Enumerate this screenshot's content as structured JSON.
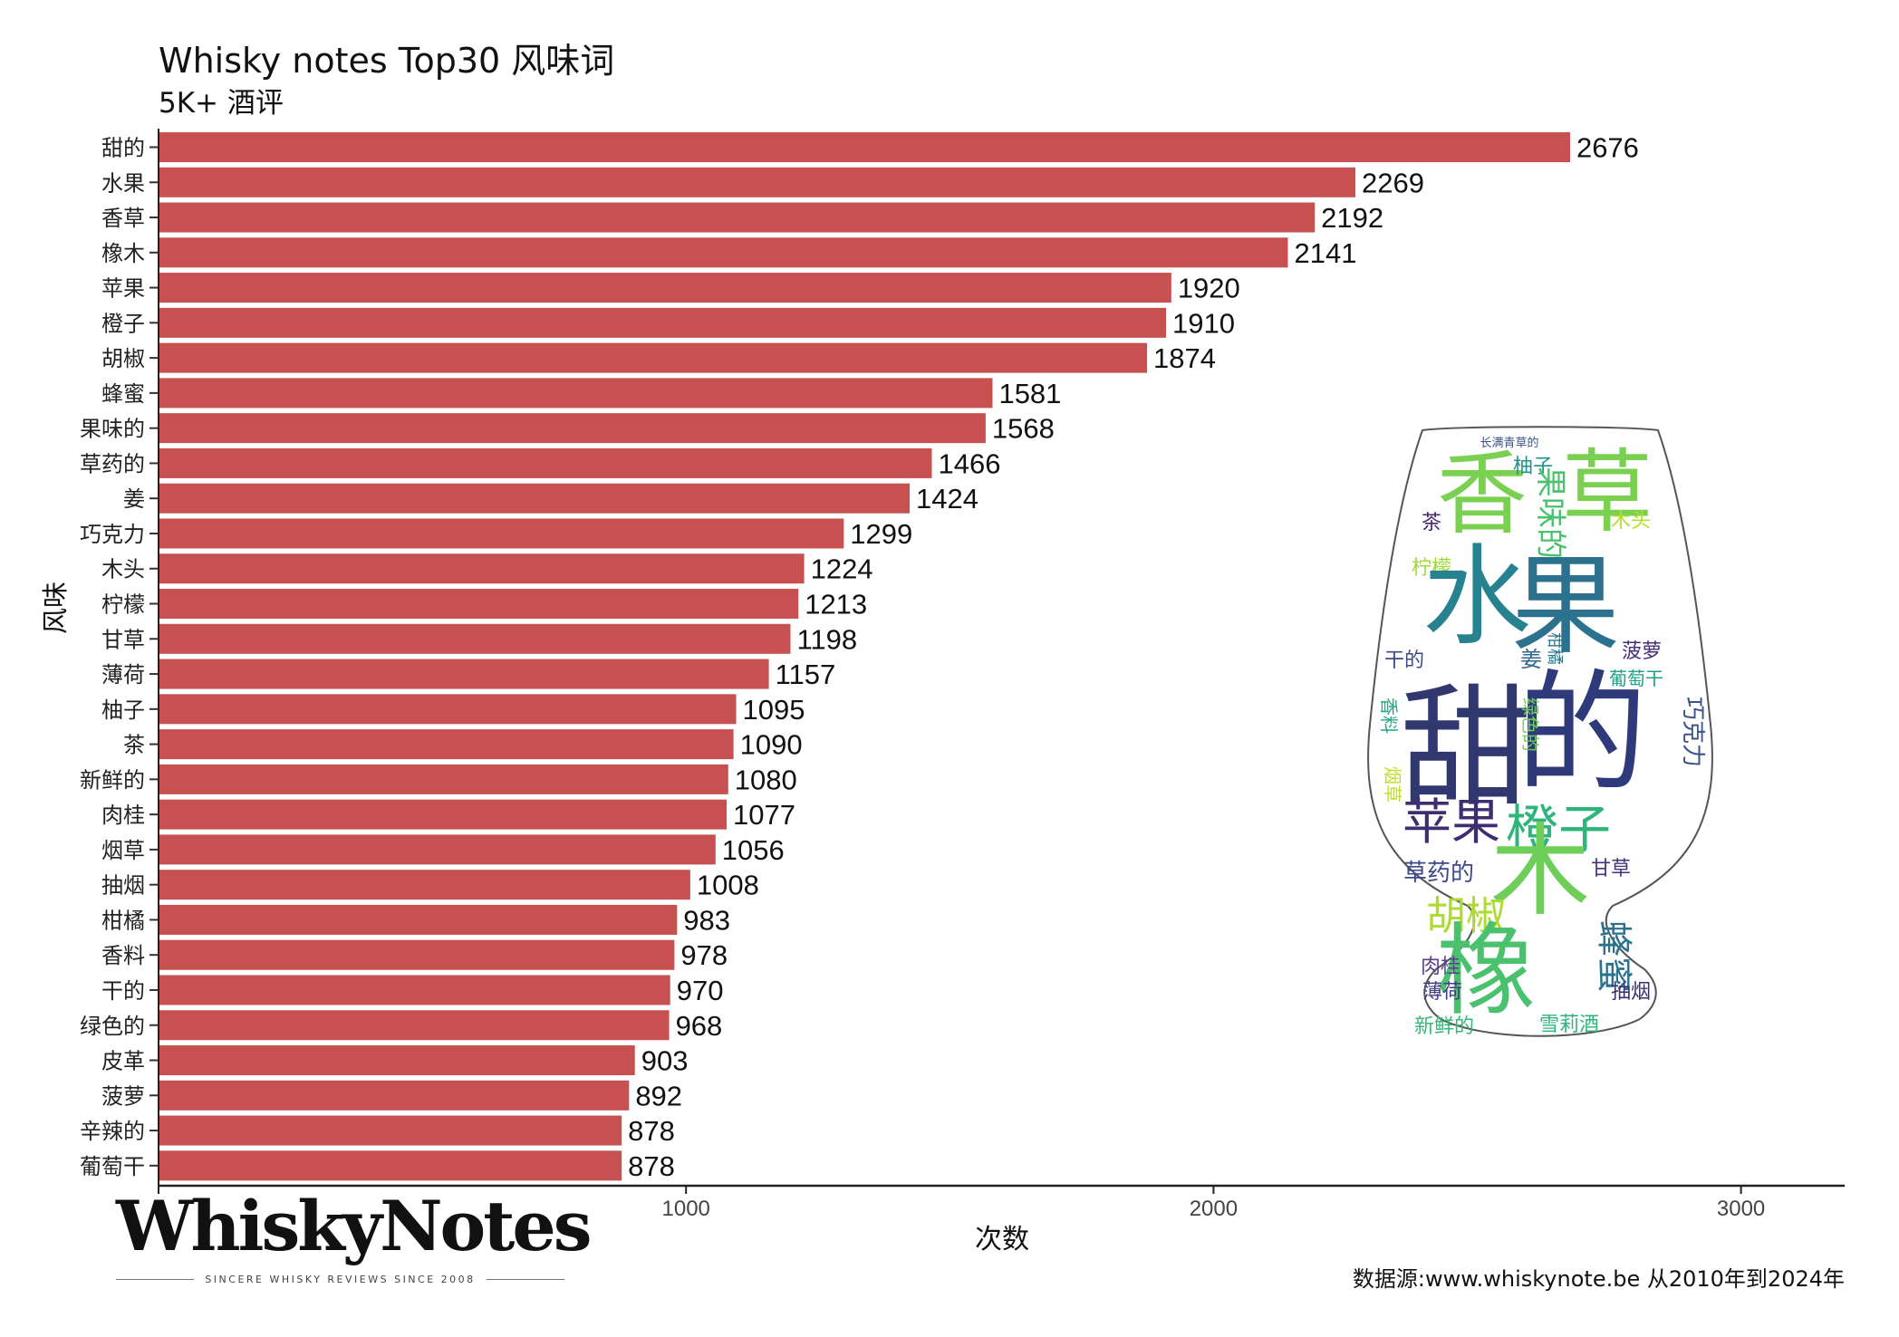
{
  "chart_data": {
    "type": "bar",
    "orientation": "horizontal",
    "title": "Whisky notes Top30 风味词",
    "subtitle": "5K+ 酒评",
    "xlabel": "次数",
    "ylabel": "风味",
    "xlim": [
      0,
      3200
    ],
    "xticks": [
      0,
      1000,
      2000,
      3000
    ],
    "grid": false,
    "bar_color": "#c75151",
    "categories": [
      "甜的",
      "水果",
      "香草",
      "橡木",
      "苹果",
      "橙子",
      "胡椒",
      "蜂蜜",
      "果味的",
      "草药的",
      "姜",
      "巧克力",
      "木头",
      "柠檬",
      "甘草",
      "薄荷",
      "柚子",
      "茶",
      "新鲜的",
      "肉桂",
      "烟草",
      "抽烟",
      "柑橘",
      "香料",
      "干的",
      "绿色的",
      "皮革",
      "菠萝",
      "辛辣的",
      "葡萄干"
    ],
    "values": [
      2676,
      2269,
      2192,
      2141,
      1920,
      1910,
      1874,
      1581,
      1568,
      1466,
      1424,
      1299,
      1224,
      1213,
      1198,
      1157,
      1095,
      1090,
      1080,
      1077,
      1056,
      1008,
      983,
      978,
      970,
      968,
      903,
      892,
      878,
      878
    ],
    "source": "数据源:www.whiskynote.be 从2010年到2024年"
  },
  "logo": {
    "wordmark": "WhiskyNotes",
    "tagline": "SINCERE WHISKY REVIEWS SINCE 2008"
  },
  "wordcloud": {
    "words": [
      {
        "text": "长满青草的",
        "color": "#3b528b"
      },
      {
        "text": "香",
        "color": "#7ad151"
      },
      {
        "text": "草",
        "color": "#7ad151"
      },
      {
        "text": "柚子",
        "color": "#21918c"
      },
      {
        "text": "茶",
        "color": "#482878"
      },
      {
        "text": "木头",
        "color": "#b5de2b"
      },
      {
        "text": "柠檬",
        "color": "#a0da39"
      },
      {
        "text": "水",
        "color": "#26828e"
      },
      {
        "text": "果",
        "color": "#2c728e"
      },
      {
        "text": "果味的",
        "color": "#4ac16d"
      },
      {
        "text": "干的",
        "color": "#3e4989"
      },
      {
        "text": "姜",
        "color": "#31688e"
      },
      {
        "text": "柑橘",
        "color": "#2a788e"
      },
      {
        "text": "菠萝",
        "color": "#472d7b"
      },
      {
        "text": "葡萄干",
        "color": "#1fa187"
      },
      {
        "text": "甜",
        "color": "#31376f"
      },
      {
        "text": "的",
        "color": "#2e3a7a"
      },
      {
        "text": "香料",
        "color": "#22a884"
      },
      {
        "text": "绿色的",
        "color": "#6ece58"
      },
      {
        "text": "巧克力",
        "color": "#3b528b"
      },
      {
        "text": "烟草",
        "color": "#bddf26"
      },
      {
        "text": "苹果",
        "color": "#3e2d70"
      },
      {
        "text": "橙子",
        "color": "#2fb47c"
      },
      {
        "text": "木",
        "color": "#6ece58"
      },
      {
        "text": "草药的",
        "color": "#3e4989"
      },
      {
        "text": "甘草",
        "color": "#46337e"
      },
      {
        "text": "胡椒",
        "color": "#addc30"
      },
      {
        "text": "蜂蜜",
        "color": "#2c728e"
      },
      {
        "text": "橡",
        "color": "#4ac16d"
      },
      {
        "text": "肉桂",
        "color": "#5b3f8f"
      },
      {
        "text": "薄荷",
        "color": "#433e85"
      },
      {
        "text": "抽烟",
        "color": "#3b2f72"
      },
      {
        "text": "新鲜的",
        "color": "#35b779"
      },
      {
        "text": "雪莉酒",
        "color": "#2fb47c"
      }
    ]
  }
}
